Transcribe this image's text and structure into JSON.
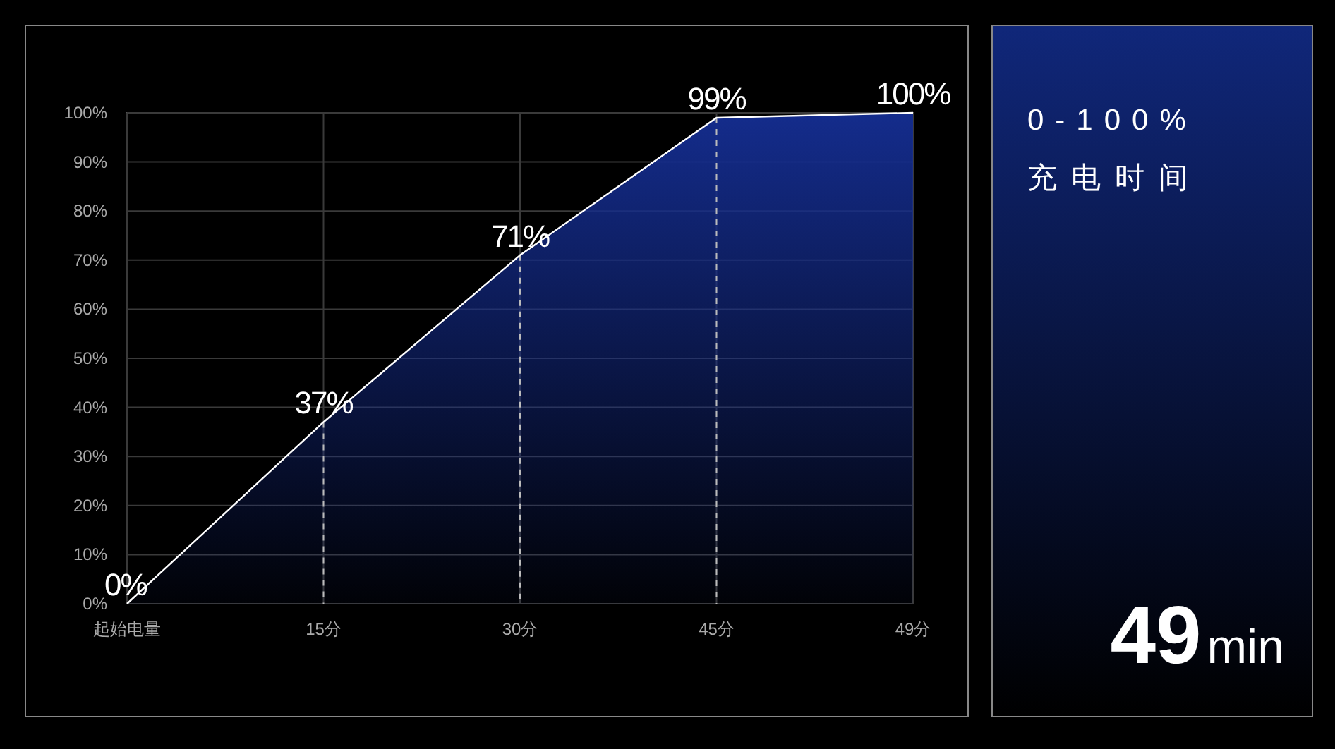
{
  "chart_data": [
    {
      "type": "area",
      "categories": [
        "起始电量",
        "15分",
        "30分",
        "45分",
        "49分"
      ],
      "series": [
        {
          "color": "#142c8c",
          "values": [
            0,
            37,
            71,
            99,
            100
          ]
        }
      ],
      "value_labels": [
        "0%",
        "37%",
        "71%",
        "99%",
        "100%"
      ],
      "ylim": [
        0,
        100
      ],
      "yticks": [
        {
          "value": 0,
          "label": "0%"
        },
        {
          "value": 10,
          "label": "10%"
        },
        {
          "value": 20,
          "label": "20%"
        },
        {
          "value": 30,
          "label": "30%"
        },
        {
          "value": 40,
          "label": "40%"
        },
        {
          "value": 50,
          "label": "50%"
        },
        {
          "value": 60,
          "label": "60%"
        },
        {
          "value": 70,
          "label": "70%"
        },
        {
          "value": 80,
          "label": "80%"
        },
        {
          "value": 90,
          "label": "90%"
        },
        {
          "value": 100,
          "label": "100%"
        }
      ],
      "grid": true
    },
    {
      "type": "other",
      "title": "0-100%",
      "subtitle": "充电时间",
      "annotations": [
        "49min"
      ]
    }
  ]
}
